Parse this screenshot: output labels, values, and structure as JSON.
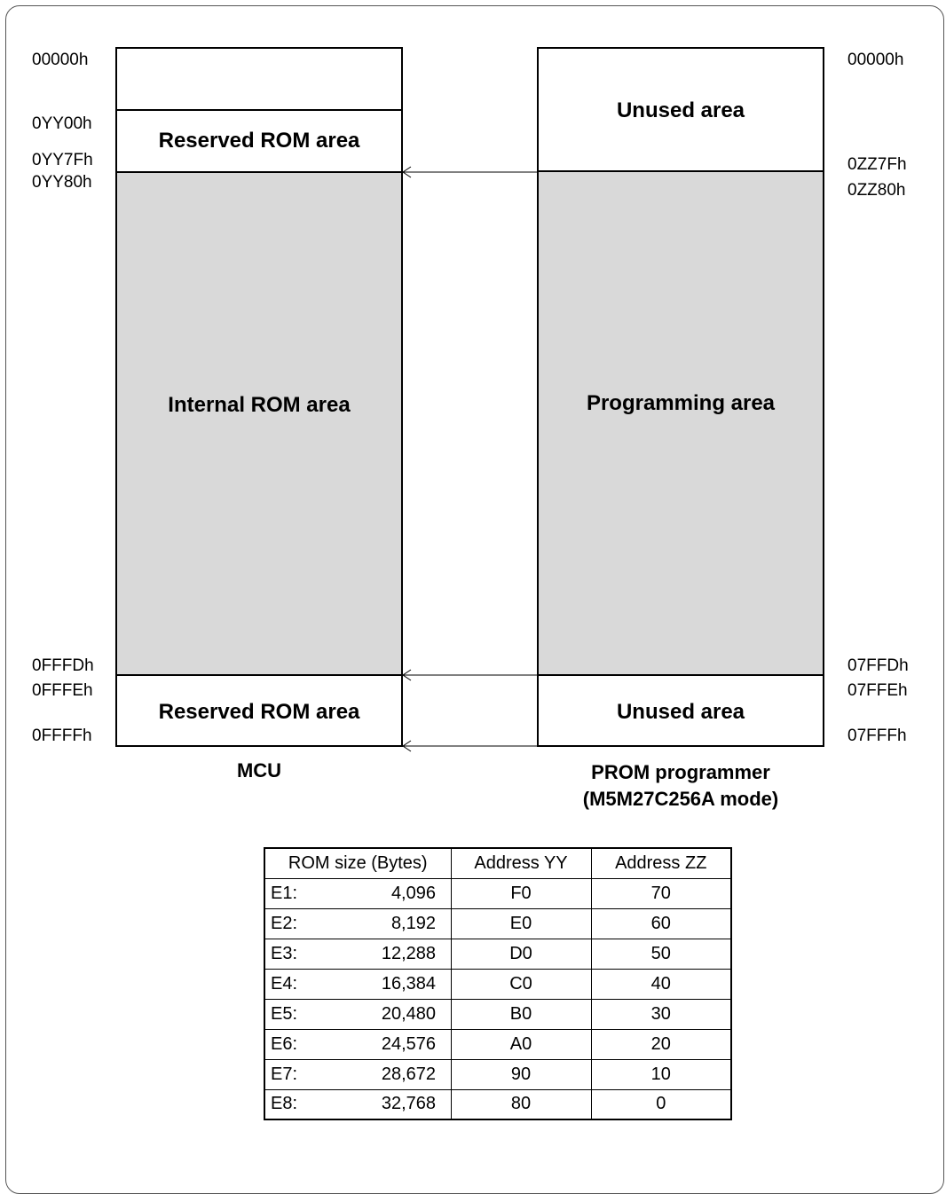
{
  "mcu": {
    "caption": "MCU",
    "address_labels": [
      "00000h",
      "0YY00h",
      "0YY7Fh",
      "0YY80h",
      "0FFFDh",
      "0FFFEh",
      "0FFFFh"
    ],
    "regions": [
      {
        "label": "",
        "fill": "#ffffff"
      },
      {
        "label": "Reserved ROM area",
        "fill": "#ffffff"
      },
      {
        "label": "Internal ROM area",
        "fill": "#d9d9d9"
      },
      {
        "label": "Reserved ROM area",
        "fill": "#ffffff"
      }
    ]
  },
  "prom": {
    "caption_line1": "PROM programmer",
    "caption_line2": "(M5M27C256A mode)",
    "address_labels": [
      "00000h",
      "0ZZ7Fh",
      "0ZZ80h",
      "07FFDh",
      "07FFEh",
      "07FFFh"
    ],
    "regions": [
      {
        "label": "Unused area",
        "fill": "#ffffff"
      },
      {
        "label": "Programming area",
        "fill": "#d9d9d9"
      },
      {
        "label": "Unused area",
        "fill": "#ffffff"
      }
    ]
  },
  "table": {
    "headers": [
      "ROM size (Bytes)",
      "Address YY",
      "Address ZZ"
    ],
    "rows": [
      {
        "id": "E1:",
        "size": "4,096",
        "yy": "F0",
        "zz": "70"
      },
      {
        "id": "E2:",
        "size": "8,192",
        "yy": "E0",
        "zz": "60"
      },
      {
        "id": "E3:",
        "size": "12,288",
        "yy": "D0",
        "zz": "50"
      },
      {
        "id": "E4:",
        "size": "16,384",
        "yy": "C0",
        "zz": "40"
      },
      {
        "id": "E5:",
        "size": "20,480",
        "yy": "B0",
        "zz": "30"
      },
      {
        "id": "E6:",
        "size": "24,576",
        "yy": "A0",
        "zz": "20"
      },
      {
        "id": "E7:",
        "size": "28,672",
        "yy": "90",
        "zz": "10"
      },
      {
        "id": "E8:",
        "size": "32,768",
        "yy": "80",
        "zz": "0"
      }
    ]
  }
}
